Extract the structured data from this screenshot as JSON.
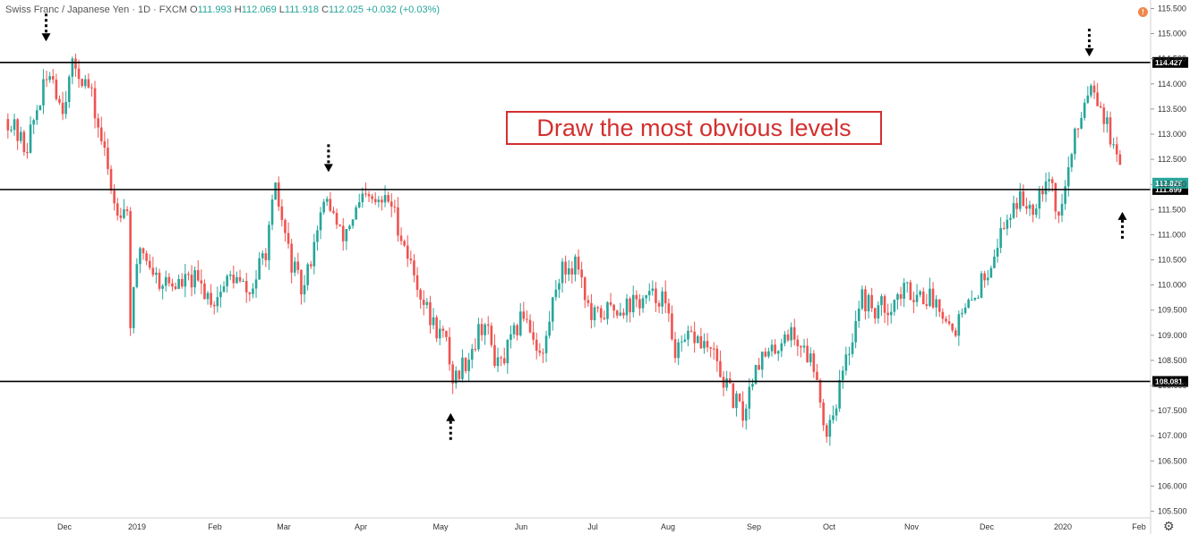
{
  "header": {
    "symbol": "Swiss Franc / Japanese Yen · 1D · FXCM",
    "o_label": "O",
    "o_value": "111.993",
    "h_label": "H",
    "h_value": "112.069",
    "l_label": "L",
    "l_value": "111.918",
    "c_label": "C",
    "c_value": "112.025",
    "change": "+0.032 (+0.03%)"
  },
  "annotation": "Draw the most obvious levels",
  "alert_icon": "alert-circle-icon",
  "settings_icon": "gear-icon",
  "colors": {
    "up": "#26a69a",
    "down": "#ef5350",
    "line": "#000000",
    "annotation": "#d32f2f",
    "last_price": "#26a69a"
  },
  "chart_data": {
    "type": "candlestick",
    "title": "",
    "y_axis": {
      "min": 105.5,
      "max": 115.5,
      "ticks": [
        "115.500",
        "115.000",
        "114.500",
        "114.000",
        "113.500",
        "113.000",
        "112.500",
        "112.000",
        "111.500",
        "111.000",
        "110.500",
        "110.000",
        "109.500",
        "109.000",
        "108.500",
        "108.000",
        "107.500",
        "107.000",
        "106.500",
        "106.000",
        "105.500"
      ]
    },
    "x_axis": {
      "labels": [
        "Dec",
        "2019",
        "Feb",
        "Mar",
        "Apr",
        "May",
        "Jun",
        "Jul",
        "Aug",
        "Sep",
        "Oct",
        "Nov",
        "Dec",
        "2020",
        "Feb"
      ]
    },
    "horizontal_levels": [
      {
        "value": 114.427,
        "label": "114.427"
      },
      {
        "value": 111.899,
        "label": "111.899"
      },
      {
        "value": 108.081,
        "label": "108.081"
      }
    ],
    "last_price": {
      "value": 112.025,
      "label": "112.025"
    },
    "arrows": [
      {
        "date": "2018-12-01",
        "direction": "down",
        "price": 114.9
      },
      {
        "date": "2019-03-22",
        "direction": "down",
        "price": 112.3
      },
      {
        "date": "2019-05-09",
        "direction": "up",
        "price": 107.4
      },
      {
        "date": "2020-01-15",
        "direction": "down",
        "price": 114.6
      },
      {
        "date": "2020-01-28",
        "direction": "up",
        "price": 111.4
      }
    ],
    "path": [
      [
        "2018-11-16",
        113.3
      ],
      [
        "2018-11-23",
        112.7
      ],
      [
        "2018-11-28",
        113.6
      ],
      [
        "2018-12-03",
        114.3
      ],
      [
        "2018-12-07",
        113.5
      ],
      [
        "2018-12-12",
        114.4
      ],
      [
        "2018-12-18",
        113.9
      ],
      [
        "2018-12-24",
        112.6
      ],
      [
        "2018-12-28",
        111.6
      ],
      [
        "2019-01-02",
        111.5
      ],
      [
        "2019-01-03",
        109.2
      ],
      [
        "2019-01-07",
        110.8
      ],
      [
        "2019-01-14",
        110.1
      ],
      [
        "2019-01-21",
        110.0
      ],
      [
        "2019-01-28",
        110.1
      ],
      [
        "2019-02-05",
        109.7
      ],
      [
        "2019-02-12",
        110.2
      ],
      [
        "2019-02-19",
        109.8
      ],
      [
        "2019-02-26",
        110.8
      ],
      [
        "2019-03-01",
        111.9
      ],
      [
        "2019-03-07",
        110.5
      ],
      [
        "2019-03-12",
        109.8
      ],
      [
        "2019-03-18",
        111.3
      ],
      [
        "2019-03-22",
        111.7
      ],
      [
        "2019-03-27",
        110.9
      ],
      [
        "2019-04-01",
        111.4
      ],
      [
        "2019-04-05",
        111.7
      ],
      [
        "2019-04-10",
        111.6
      ],
      [
        "2019-04-15",
        111.7
      ],
      [
        "2019-04-19",
        111.1
      ],
      [
        "2019-04-24",
        110.3
      ],
      [
        "2019-05-01",
        109.3
      ],
      [
        "2019-05-07",
        108.9
      ],
      [
        "2019-05-10",
        108.1
      ],
      [
        "2019-05-16",
        108.6
      ],
      [
        "2019-05-22",
        109.3
      ],
      [
        "2019-05-28",
        108.3
      ],
      [
        "2019-06-03",
        109.0
      ],
      [
        "2019-06-07",
        109.5
      ],
      [
        "2019-06-14",
        108.5
      ],
      [
        "2019-06-20",
        110.2
      ],
      [
        "2019-06-28",
        110.5
      ],
      [
        "2019-07-03",
        109.3
      ],
      [
        "2019-07-10",
        109.5
      ],
      [
        "2019-07-17",
        109.6
      ],
      [
        "2019-07-24",
        109.7
      ],
      [
        "2019-07-31",
        109.8
      ],
      [
        "2019-08-06",
        108.6
      ],
      [
        "2019-08-12",
        109.0
      ],
      [
        "2019-08-19",
        108.7
      ],
      [
        "2019-08-26",
        107.9
      ],
      [
        "2019-09-01",
        107.4
      ],
      [
        "2019-09-06",
        108.5
      ],
      [
        "2019-09-12",
        108.6
      ],
      [
        "2019-09-18",
        109.1
      ],
      [
        "2019-09-24",
        108.8
      ],
      [
        "2019-09-30",
        108.3
      ],
      [
        "2019-10-03",
        107.0
      ],
      [
        "2019-10-08",
        107.8
      ],
      [
        "2019-10-13",
        108.8
      ],
      [
        "2019-10-17",
        109.8
      ],
      [
        "2019-10-22",
        109.5
      ],
      [
        "2019-10-28",
        109.6
      ],
      [
        "2019-11-04",
        109.9
      ],
      [
        "2019-11-11",
        109.8
      ],
      [
        "2019-11-18",
        109.6
      ],
      [
        "2019-11-22",
        109.1
      ],
      [
        "2019-11-28",
        109.5
      ],
      [
        "2019-12-05",
        110.2
      ],
      [
        "2019-12-11",
        111.0
      ],
      [
        "2019-12-17",
        111.7
      ],
      [
        "2019-12-24",
        111.6
      ],
      [
        "2019-12-30",
        112.3
      ],
      [
        "2020-01-03",
        111.3
      ],
      [
        "2020-01-08",
        112.6
      ],
      [
        "2020-01-13",
        113.7
      ],
      [
        "2020-01-16",
        114.1
      ],
      [
        "2020-01-20",
        113.5
      ],
      [
        "2020-01-24",
        112.8
      ],
      [
        "2020-01-28",
        112.0
      ]
    ]
  }
}
